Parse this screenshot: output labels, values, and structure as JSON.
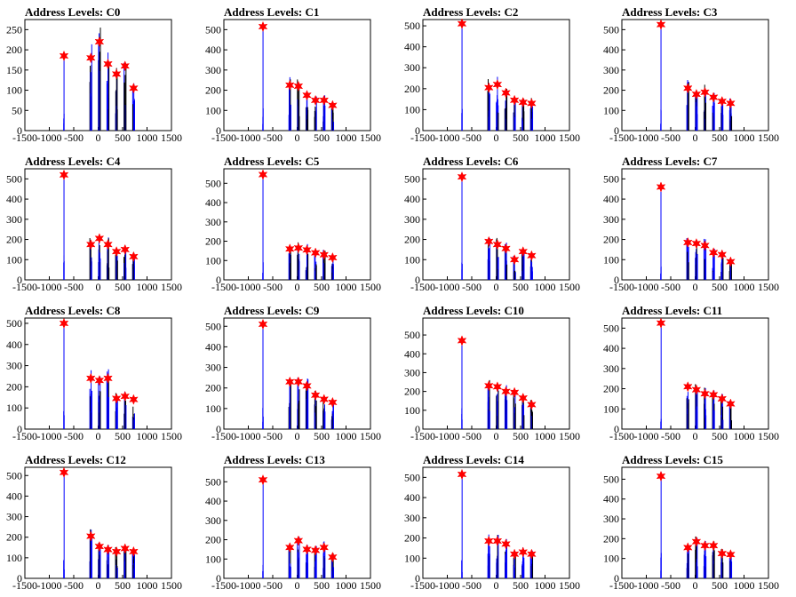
{
  "chart_data": [
    {
      "type": "histogram",
      "title": "Address Levels: C0",
      "xlim": [
        -1500,
        1500
      ],
      "ylim": [
        0,
        275
      ],
      "xticks": [
        -1500,
        -1000,
        -500,
        0,
        500,
        1000,
        1500
      ],
      "yticks": [
        0,
        50,
        100,
        150,
        200,
        250
      ],
      "peaks": [
        {
          "x": -700,
          "y": 185
        },
        {
          "x": -150,
          "y": 180
        },
        {
          "x": 25,
          "y": 220
        },
        {
          "x": 200,
          "y": 165
        },
        {
          "x": 375,
          "y": 140
        },
        {
          "x": 550,
          "y": 160
        },
        {
          "x": 725,
          "y": 105
        }
      ]
    },
    {
      "type": "histogram",
      "title": "Address Levels: C1",
      "xlim": [
        -1500,
        1500
      ],
      "ylim": [
        0,
        550
      ],
      "xticks": [
        -1500,
        -1000,
        -500,
        0,
        500,
        1000,
        1500
      ],
      "yticks": [
        0,
        100,
        200,
        300,
        400,
        500
      ],
      "peaks": [
        {
          "x": -700,
          "y": 515
        },
        {
          "x": -150,
          "y": 225
        },
        {
          "x": 25,
          "y": 220
        },
        {
          "x": 200,
          "y": 175
        },
        {
          "x": 375,
          "y": 150
        },
        {
          "x": 550,
          "y": 150
        },
        {
          "x": 725,
          "y": 125
        }
      ]
    },
    {
      "type": "histogram",
      "title": "Address Levels: C2",
      "xlim": [
        -1500,
        1500
      ],
      "ylim": [
        0,
        530
      ],
      "xticks": [
        -1500,
        -1000,
        -500,
        0,
        500,
        1000,
        1500
      ],
      "yticks": [
        0,
        100,
        200,
        300,
        400,
        500
      ],
      "peaks": [
        {
          "x": -700,
          "y": 510
        },
        {
          "x": -150,
          "y": 205
        },
        {
          "x": 25,
          "y": 220
        },
        {
          "x": 200,
          "y": 180
        },
        {
          "x": 375,
          "y": 145
        },
        {
          "x": 550,
          "y": 135
        },
        {
          "x": 725,
          "y": 130
        }
      ]
    },
    {
      "type": "histogram",
      "title": "Address Levels: C3",
      "xlim": [
        -1500,
        1500
      ],
      "ylim": [
        0,
        550
      ],
      "xticks": [
        -1500,
        -1000,
        -500,
        0,
        500,
        1000,
        1500
      ],
      "yticks": [
        0,
        100,
        200,
        300,
        400,
        500
      ],
      "peaks": [
        {
          "x": -700,
          "y": 525
        },
        {
          "x": -150,
          "y": 210
        },
        {
          "x": 25,
          "y": 180
        },
        {
          "x": 200,
          "y": 190
        },
        {
          "x": 375,
          "y": 165
        },
        {
          "x": 550,
          "y": 145
        },
        {
          "x": 725,
          "y": 135
        }
      ]
    },
    {
      "type": "histogram",
      "title": "Address Levels: C4",
      "xlim": [
        -1500,
        1500
      ],
      "ylim": [
        0,
        550
      ],
      "xticks": [
        -1500,
        -1000,
        -500,
        0,
        500,
        1000,
        1500
      ],
      "yticks": [
        0,
        100,
        200,
        300,
        400,
        500
      ],
      "peaks": [
        {
          "x": -700,
          "y": 520
        },
        {
          "x": -150,
          "y": 175
        },
        {
          "x": 25,
          "y": 205
        },
        {
          "x": 200,
          "y": 175
        },
        {
          "x": 375,
          "y": 140
        },
        {
          "x": 550,
          "y": 150
        },
        {
          "x": 725,
          "y": 115
        }
      ]
    },
    {
      "type": "histogram",
      "title": "Address Levels: C5",
      "xlim": [
        -1500,
        1500
      ],
      "ylim": [
        0,
        575
      ],
      "xticks": [
        -1500,
        -1000,
        -500,
        0,
        500,
        1000,
        1500
      ],
      "yticks": [
        0,
        100,
        200,
        300,
        400,
        500
      ],
      "peaks": [
        {
          "x": -700,
          "y": 545
        },
        {
          "x": -150,
          "y": 160
        },
        {
          "x": 25,
          "y": 165
        },
        {
          "x": 200,
          "y": 155
        },
        {
          "x": 375,
          "y": 140
        },
        {
          "x": 550,
          "y": 130
        },
        {
          "x": 725,
          "y": 115
        }
      ]
    },
    {
      "type": "histogram",
      "title": "Address Levels: C6",
      "xlim": [
        -1500,
        1500
      ],
      "ylim": [
        0,
        550
      ],
      "xticks": [
        -1500,
        -1000,
        -500,
        0,
        500,
        1000,
        1500
      ],
      "yticks": [
        0,
        100,
        200,
        300,
        400,
        500
      ],
      "peaks": [
        {
          "x": -700,
          "y": 510
        },
        {
          "x": -150,
          "y": 190
        },
        {
          "x": 25,
          "y": 175
        },
        {
          "x": 200,
          "y": 155
        },
        {
          "x": 375,
          "y": 100
        },
        {
          "x": 550,
          "y": 140
        },
        {
          "x": 725,
          "y": 120
        }
      ]
    },
    {
      "type": "histogram",
      "title": "Address Levels: C7",
      "xlim": [
        -1500,
        1500
      ],
      "ylim": [
        0,
        550
      ],
      "xticks": [
        -1500,
        -1000,
        -500,
        0,
        500,
        1000,
        1500
      ],
      "yticks": [
        0,
        100,
        200,
        300,
        400,
        500
      ],
      "peaks": [
        {
          "x": -700,
          "y": 460
        },
        {
          "x": -150,
          "y": 185
        },
        {
          "x": 25,
          "y": 180
        },
        {
          "x": 200,
          "y": 170
        },
        {
          "x": 375,
          "y": 135
        },
        {
          "x": 550,
          "y": 125
        },
        {
          "x": 725,
          "y": 90
        }
      ]
    },
    {
      "type": "histogram",
      "title": "Address Levels: C8",
      "xlim": [
        -1500,
        1500
      ],
      "ylim": [
        0,
        525
      ],
      "xticks": [
        -1500,
        -1000,
        -500,
        0,
        500,
        1000,
        1500
      ],
      "yticks": [
        0,
        100,
        200,
        300,
        400,
        500
      ],
      "peaks": [
        {
          "x": -700,
          "y": 500
        },
        {
          "x": -150,
          "y": 240
        },
        {
          "x": 25,
          "y": 230
        },
        {
          "x": 200,
          "y": 240
        },
        {
          "x": 375,
          "y": 145
        },
        {
          "x": 550,
          "y": 155
        },
        {
          "x": 725,
          "y": 140
        }
      ]
    },
    {
      "type": "histogram",
      "title": "Address Levels: C9",
      "xlim": [
        -1500,
        1500
      ],
      "ylim": [
        0,
        540
      ],
      "xticks": [
        -1500,
        -1000,
        -500,
        0,
        500,
        1000,
        1500
      ],
      "yticks": [
        0,
        100,
        200,
        300,
        400,
        500
      ],
      "peaks": [
        {
          "x": -700,
          "y": 510
        },
        {
          "x": -150,
          "y": 230
        },
        {
          "x": 25,
          "y": 230
        },
        {
          "x": 200,
          "y": 210
        },
        {
          "x": 375,
          "y": 165
        },
        {
          "x": 550,
          "y": 145
        },
        {
          "x": 725,
          "y": 130
        }
      ]
    },
    {
      "type": "histogram",
      "title": "Address Levels: C10",
      "xlim": [
        -1500,
        1500
      ],
      "ylim": [
        0,
        590
      ],
      "xticks": [
        -1500,
        -1000,
        -500,
        0,
        500,
        1000,
        1500
      ],
      "yticks": [
        0,
        100,
        200,
        300,
        400,
        500
      ],
      "peaks": [
        {
          "x": -700,
          "y": 470
        },
        {
          "x": -150,
          "y": 230
        },
        {
          "x": 25,
          "y": 225
        },
        {
          "x": 200,
          "y": 200
        },
        {
          "x": 375,
          "y": 195
        },
        {
          "x": 550,
          "y": 165
        },
        {
          "x": 725,
          "y": 130
        }
      ]
    },
    {
      "type": "histogram",
      "title": "Address Levels: C11",
      "xlim": [
        -1500,
        1500
      ],
      "ylim": [
        0,
        550
      ],
      "xticks": [
        -1500,
        -1000,
        -500,
        0,
        500,
        1000,
        1500
      ],
      "yticks": [
        0,
        100,
        200,
        300,
        400,
        500
      ],
      "peaks": [
        {
          "x": -700,
          "y": 525
        },
        {
          "x": -150,
          "y": 210
        },
        {
          "x": 25,
          "y": 195
        },
        {
          "x": 200,
          "y": 175
        },
        {
          "x": 375,
          "y": 170
        },
        {
          "x": 550,
          "y": 150
        },
        {
          "x": 725,
          "y": 125
        }
      ]
    },
    {
      "type": "histogram",
      "title": "Address Levels: C12",
      "xlim": [
        -1500,
        1500
      ],
      "ylim": [
        0,
        540
      ],
      "xticks": [
        -1500,
        -1000,
        -500,
        0,
        500,
        1000,
        1500
      ],
      "yticks": [
        0,
        100,
        200,
        300,
        400,
        500
      ],
      "peaks": [
        {
          "x": -700,
          "y": 515
        },
        {
          "x": -150,
          "y": 205
        },
        {
          "x": 25,
          "y": 155
        },
        {
          "x": 200,
          "y": 140
        },
        {
          "x": 375,
          "y": 130
        },
        {
          "x": 550,
          "y": 145
        },
        {
          "x": 725,
          "y": 130
        }
      ]
    },
    {
      "type": "histogram",
      "title": "Address Levels: C13",
      "xlim": [
        -1500,
        1500
      ],
      "ylim": [
        0,
        575
      ],
      "xticks": [
        -1500,
        -1000,
        -500,
        0,
        500,
        1000,
        1500
      ],
      "yticks": [
        0,
        100,
        200,
        300,
        400,
        500
      ],
      "peaks": [
        {
          "x": -700,
          "y": 510
        },
        {
          "x": -150,
          "y": 160
        },
        {
          "x": 25,
          "y": 195
        },
        {
          "x": 200,
          "y": 150
        },
        {
          "x": 375,
          "y": 145
        },
        {
          "x": 550,
          "y": 160
        },
        {
          "x": 725,
          "y": 110
        }
      ]
    },
    {
      "type": "histogram",
      "title": "Address Levels: C14",
      "xlim": [
        -1500,
        1500
      ],
      "ylim": [
        0,
        550
      ],
      "xticks": [
        -1500,
        -1000,
        -500,
        0,
        500,
        1000,
        1500
      ],
      "yticks": [
        0,
        100,
        200,
        300,
        400,
        500
      ],
      "peaks": [
        {
          "x": -700,
          "y": 515
        },
        {
          "x": -150,
          "y": 185
        },
        {
          "x": 25,
          "y": 185
        },
        {
          "x": 200,
          "y": 170
        },
        {
          "x": 375,
          "y": 120
        },
        {
          "x": 550,
          "y": 130
        },
        {
          "x": 725,
          "y": 120
        }
      ]
    },
    {
      "type": "histogram",
      "title": "Address Levels: C15",
      "xlim": [
        -1500,
        1500
      ],
      "ylim": [
        0,
        560
      ],
      "xticks": [
        -1500,
        -1000,
        -500,
        0,
        500,
        1000,
        1500
      ],
      "yticks": [
        0,
        100,
        200,
        300,
        400,
        500
      ],
      "peaks": [
        {
          "x": -700,
          "y": 515
        },
        {
          "x": -150,
          "y": 155
        },
        {
          "x": 25,
          "y": 185
        },
        {
          "x": 200,
          "y": 165
        },
        {
          "x": 375,
          "y": 165
        },
        {
          "x": 550,
          "y": 125
        },
        {
          "x": 725,
          "y": 120
        }
      ]
    }
  ],
  "colors": {
    "histogram": "#0000ff",
    "overlay": "#000000",
    "marker": "#ff0000",
    "axis": "#000000",
    "text": "#000000"
  }
}
